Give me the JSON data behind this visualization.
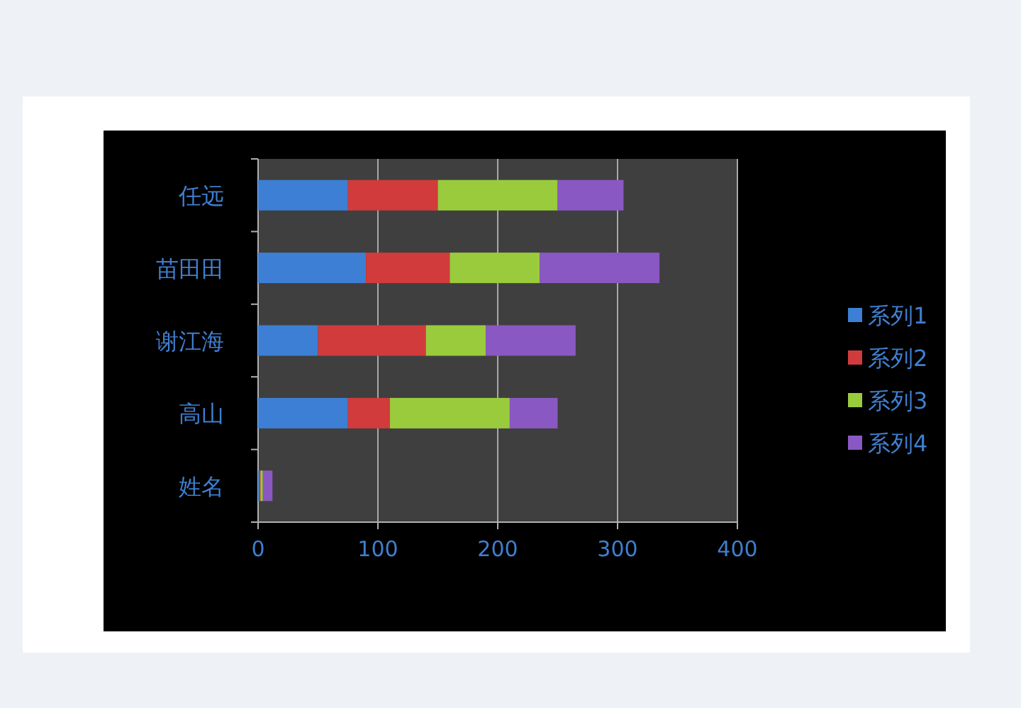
{
  "chart_data": {
    "type": "bar",
    "orientation": "horizontal",
    "stacked": true,
    "categories": [
      "任远",
      "苗田田",
      "谢江海",
      "高山",
      "姓名"
    ],
    "series": [
      {
        "name": "系列1",
        "color": "#3c7fd4",
        "values": [
          75,
          90,
          50,
          75,
          1
        ]
      },
      {
        "name": "系列2",
        "color": "#d23b3b",
        "values": [
          75,
          70,
          90,
          35,
          1
        ]
      },
      {
        "name": "系列3",
        "color": "#9acb3c",
        "values": [
          100,
          75,
          50,
          100,
          2
        ]
      },
      {
        "name": "系列4",
        "color": "#8a58c2",
        "values": [
          55,
          100,
          75,
          40,
          8
        ]
      }
    ],
    "xlim": [
      0,
      400
    ],
    "xticks": [
      0,
      100,
      200,
      300,
      400
    ],
    "grid": "x",
    "legend": "right"
  }
}
